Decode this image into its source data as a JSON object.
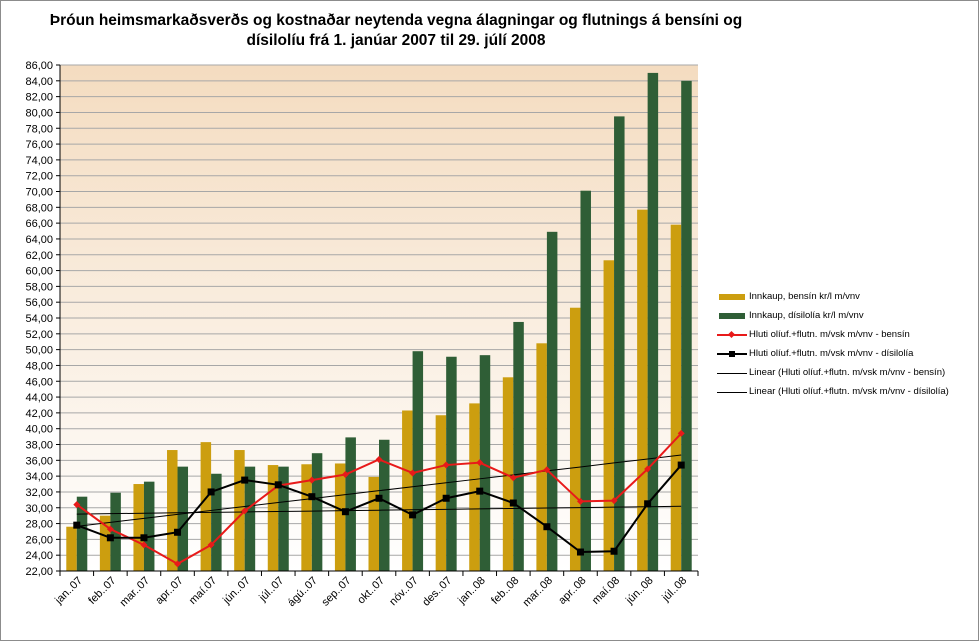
{
  "title_line1": "Þróun heimsmarkaðsverðs og kostnaðar neytenda vegna álagningar og flutnings á bensíni og",
  "title_line2": "dísilolíu frá 1. janúar 2007 til 29. júlí 2008",
  "colors": {
    "bensin_bar": "#cc9e0f",
    "disel_bar": "#2f5e36",
    "bensin_line": "#e81a1a",
    "disel_line": "#000000",
    "trend_line": "#000000",
    "plot_bg_top": "#f4dcc0",
    "plot_bg_bottom": "#ffffff",
    "grid": "#a7a7a7"
  },
  "legend": [
    {
      "label": "Innkaup, bensín kr/l m/vnv",
      "kind": "bar",
      "color": "#cc9e0f"
    },
    {
      "label": "Innkaup, dísilolía kr/l m/vnv",
      "kind": "bar",
      "color": "#2f5e36"
    },
    {
      "label": "Hluti olíuf.+flutn. m/vsk m/vnv  - bensín",
      "kind": "line-diamond",
      "color": "#e81a1a"
    },
    {
      "label": "Hluti olíuf.+flutn. m/vsk m/vnv  - dísilolía",
      "kind": "line-square",
      "color": "#000000"
    },
    {
      "label": "Linear (Hluti olíuf.+flutn. m/vsk m/vnv  - bensín)",
      "kind": "line",
      "color": "#000000"
    },
    {
      "label": "Linear (Hluti olíuf.+flutn. m/vsk m/vnv  - dísilolía)",
      "kind": "line",
      "color": "#000000"
    }
  ],
  "chart_data": {
    "type": "bar",
    "title": "Þróun heimsmarkaðsverðs og kostnaðar neytenda vegna álagningar og flutnings á bensíni og dísilolíu frá 1. janúar 2007 til 29. júlí 2008",
    "categories": [
      "jan..07",
      "feb..07",
      "mar..07",
      "apr..07",
      "maí.07",
      "jún..07",
      "júl..07",
      "ágú..07",
      "sep..07",
      "okt..07",
      "nóv..07",
      "des..07",
      "jan..08",
      "feb..08",
      "mar..08",
      "apr..08",
      "maí.08",
      "jún..08",
      "júl..08"
    ],
    "ylim": [
      22,
      86
    ],
    "ytick_step": 2,
    "ytick_labels": [
      "22,00",
      "24,00",
      "26,00",
      "28,00",
      "30,00",
      "32,00",
      "34,00",
      "36,00",
      "38,00",
      "40,00",
      "42,00",
      "44,00",
      "46,00",
      "48,00",
      "50,00",
      "52,00",
      "54,00",
      "56,00",
      "58,00",
      "60,00",
      "62,00",
      "64,00",
      "66,00",
      "68,00",
      "70,00",
      "72,00",
      "74,00",
      "76,00",
      "78,00",
      "80,00",
      "82,00",
      "84,00",
      "86,00"
    ],
    "grid": true,
    "legend_position": "right",
    "series": [
      {
        "name": "Innkaup, bensín kr/l m/vnv",
        "kind": "bar",
        "values": [
          27.6,
          29.0,
          33.0,
          37.3,
          38.3,
          37.3,
          35.4,
          35.5,
          35.6,
          33.9,
          42.3,
          41.7,
          43.2,
          46.5,
          50.8,
          55.3,
          61.3,
          67.7,
          65.8
        ]
      },
      {
        "name": "Innkaup, dísilolía kr/l m/vnv",
        "kind": "bar",
        "values": [
          31.4,
          31.9,
          33.3,
          35.2,
          34.3,
          35.2,
          35.2,
          36.9,
          38.9,
          38.6,
          49.8,
          49.1,
          49.3,
          53.5,
          64.9,
          70.1,
          79.5,
          85.0,
          84.0
        ]
      },
      {
        "name": "Hluti olíuf.+flutn. m/vsk m/vnv  - bensín",
        "kind": "line",
        "values": [
          30.4,
          27.3,
          25.3,
          22.9,
          25.3,
          29.6,
          32.8,
          33.5,
          34.2,
          36.1,
          34.4,
          35.4,
          35.7,
          33.8,
          34.8,
          30.8,
          30.9,
          34.9,
          39.4
        ]
      },
      {
        "name": "Hluti olíuf.+flutn. m/vsk m/vnv  - dísilolía",
        "kind": "line",
        "values": [
          27.8,
          26.2,
          26.2,
          26.9,
          32.0,
          33.5,
          32.9,
          31.4,
          29.5,
          31.2,
          29.1,
          31.2,
          32.1,
          30.6,
          27.6,
          24.4,
          24.5,
          30.5,
          35.4
        ]
      },
      {
        "name": "Linear (Hluti olíuf.+flutn. m/vsk m/vnv  - bensín)",
        "kind": "trend",
        "values": [
          27.65,
          28.15,
          28.66,
          29.16,
          29.66,
          30.16,
          30.66,
          31.16,
          31.66,
          32.16,
          32.66,
          33.16,
          33.66,
          34.16,
          34.66,
          35.16,
          35.67,
          36.17,
          36.67
        ]
      },
      {
        "name": "Linear (Hluti olíuf.+flutn. m/vsk m/vnv  - dísilolía)",
        "kind": "trend",
        "values": [
          29.2,
          29.25,
          29.31,
          29.36,
          29.42,
          29.47,
          29.53,
          29.58,
          29.64,
          29.69,
          29.75,
          29.8,
          29.86,
          29.91,
          29.97,
          30.02,
          30.08,
          30.13,
          30.19
        ]
      }
    ]
  }
}
